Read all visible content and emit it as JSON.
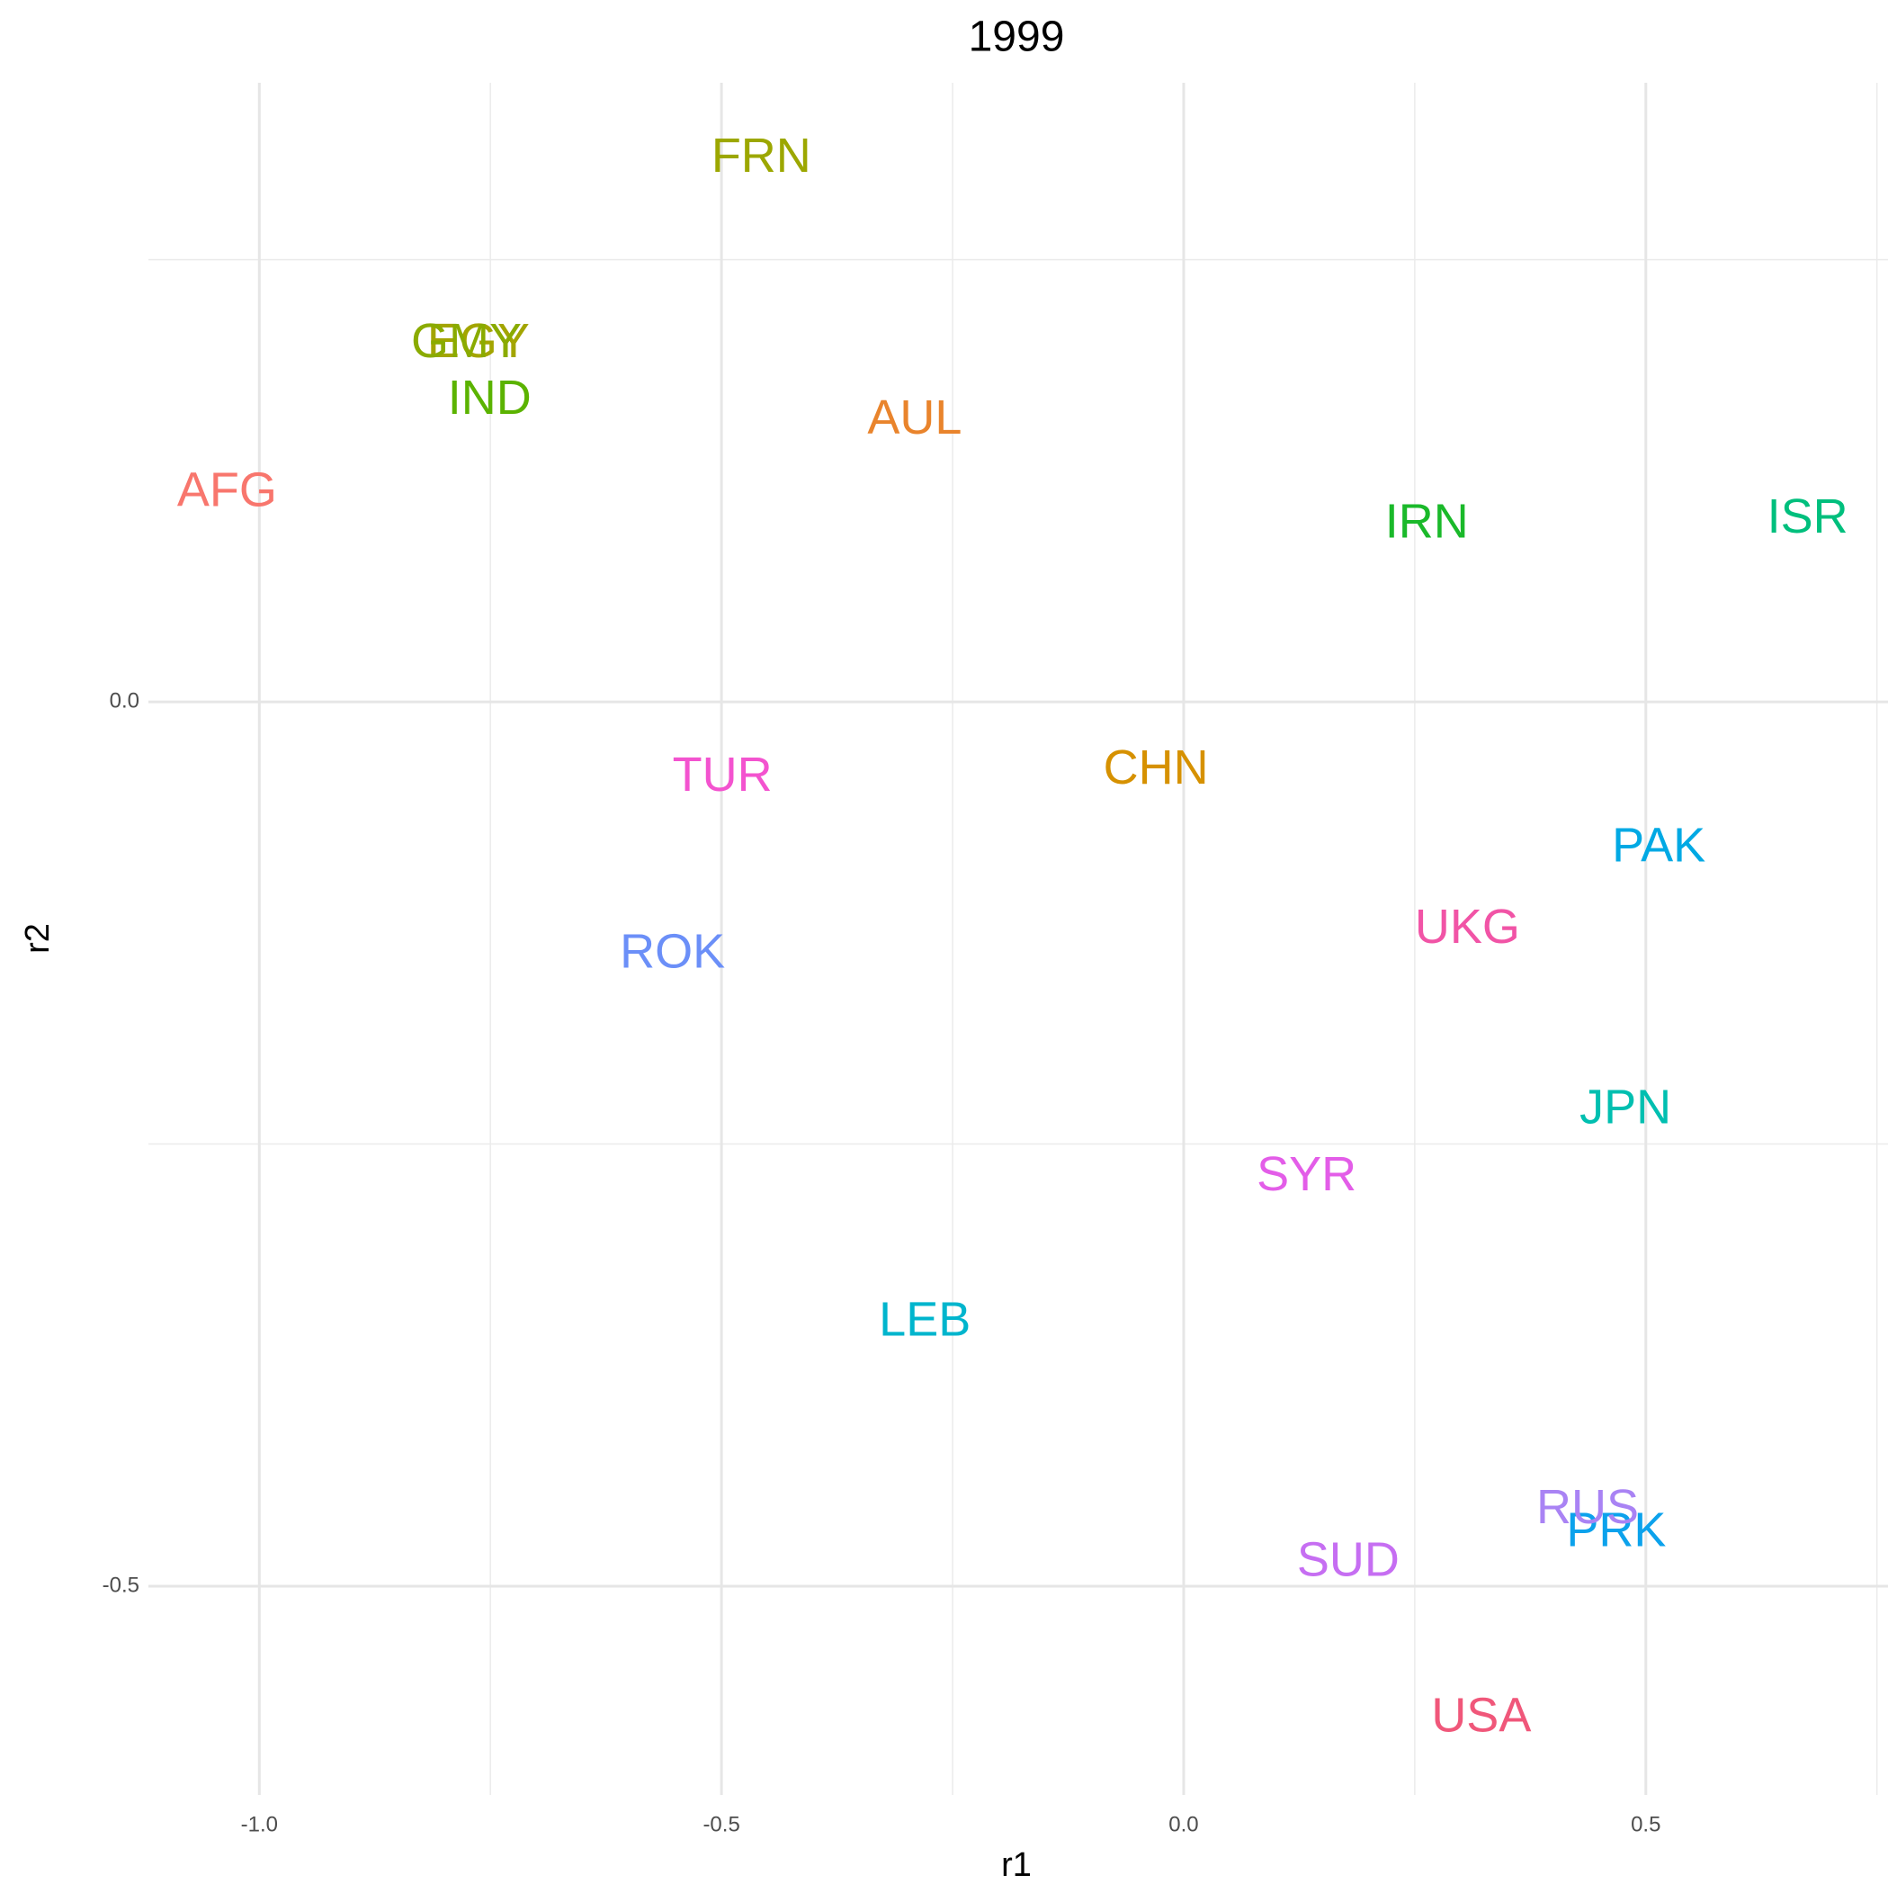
{
  "chart_data": {
    "type": "text_scatter",
    "title": "1999",
    "xlabel": "r1",
    "ylabel": "r2",
    "xlim": [
      -1.12,
      0.762
    ],
    "ylim": [
      -0.618,
      0.35
    ],
    "xticks": [
      {
        "value": -1.0,
        "label": "-1.0"
      },
      -0.5,
      {
        "value": 0,
        "label": "0.0"
      },
      0.5
    ],
    "yticks": [
      -0.5,
      {
        "value": 0,
        "label": "0.0"
      }
    ],
    "x_minor_grid": [
      -0.75,
      -0.25,
      0.25,
      0.75
    ],
    "y_minor_grid": [
      -0.25,
      0.25
    ],
    "grid": true,
    "labels": [
      "AFG",
      "AUL",
      "CHN",
      "EGY",
      "FRN",
      "GMY",
      "IND",
      "IRN",
      "ISR",
      "JPN",
      "LEB",
      "PAK",
      "PRK",
      "ROK",
      "RUS",
      "SUD",
      "SYR",
      "TUR",
      "UKG",
      "USA"
    ],
    "x": [
      -1.035,
      -0.291,
      -0.03,
      -0.763,
      -0.457,
      -0.776,
      -0.751,
      0.263,
      0.675,
      0.478,
      -0.28,
      0.514,
      0.468,
      -0.553,
      0.437,
      0.178,
      0.133,
      -0.499,
      0.307,
      0.322
    ],
    "y": [
      0.118,
      0.159,
      -0.039,
      0.202,
      0.307,
      0.202,
      0.17,
      0.1,
      0.103,
      -0.231,
      -0.351,
      -0.083,
      -0.47,
      -0.143,
      -0.457,
      -0.487,
      -0.269,
      -0.043,
      -0.129,
      -0.575
    ],
    "colors": [
      "#F8766D",
      "#E9842C",
      "#D69100",
      "#A3A500",
      "#9CA700",
      "#8AAB00",
      "#5BB300",
      "#1AB92A",
      "#00BF7D",
      "#00BFB0",
      "#00B5CD",
      "#00A9E4",
      "#0CA2EC",
      "#6B8FF8",
      "#A983F4",
      "#C66EF2",
      "#E35DE8",
      "#F353CF",
      "#F154A6",
      "#F0577A"
    ]
  }
}
